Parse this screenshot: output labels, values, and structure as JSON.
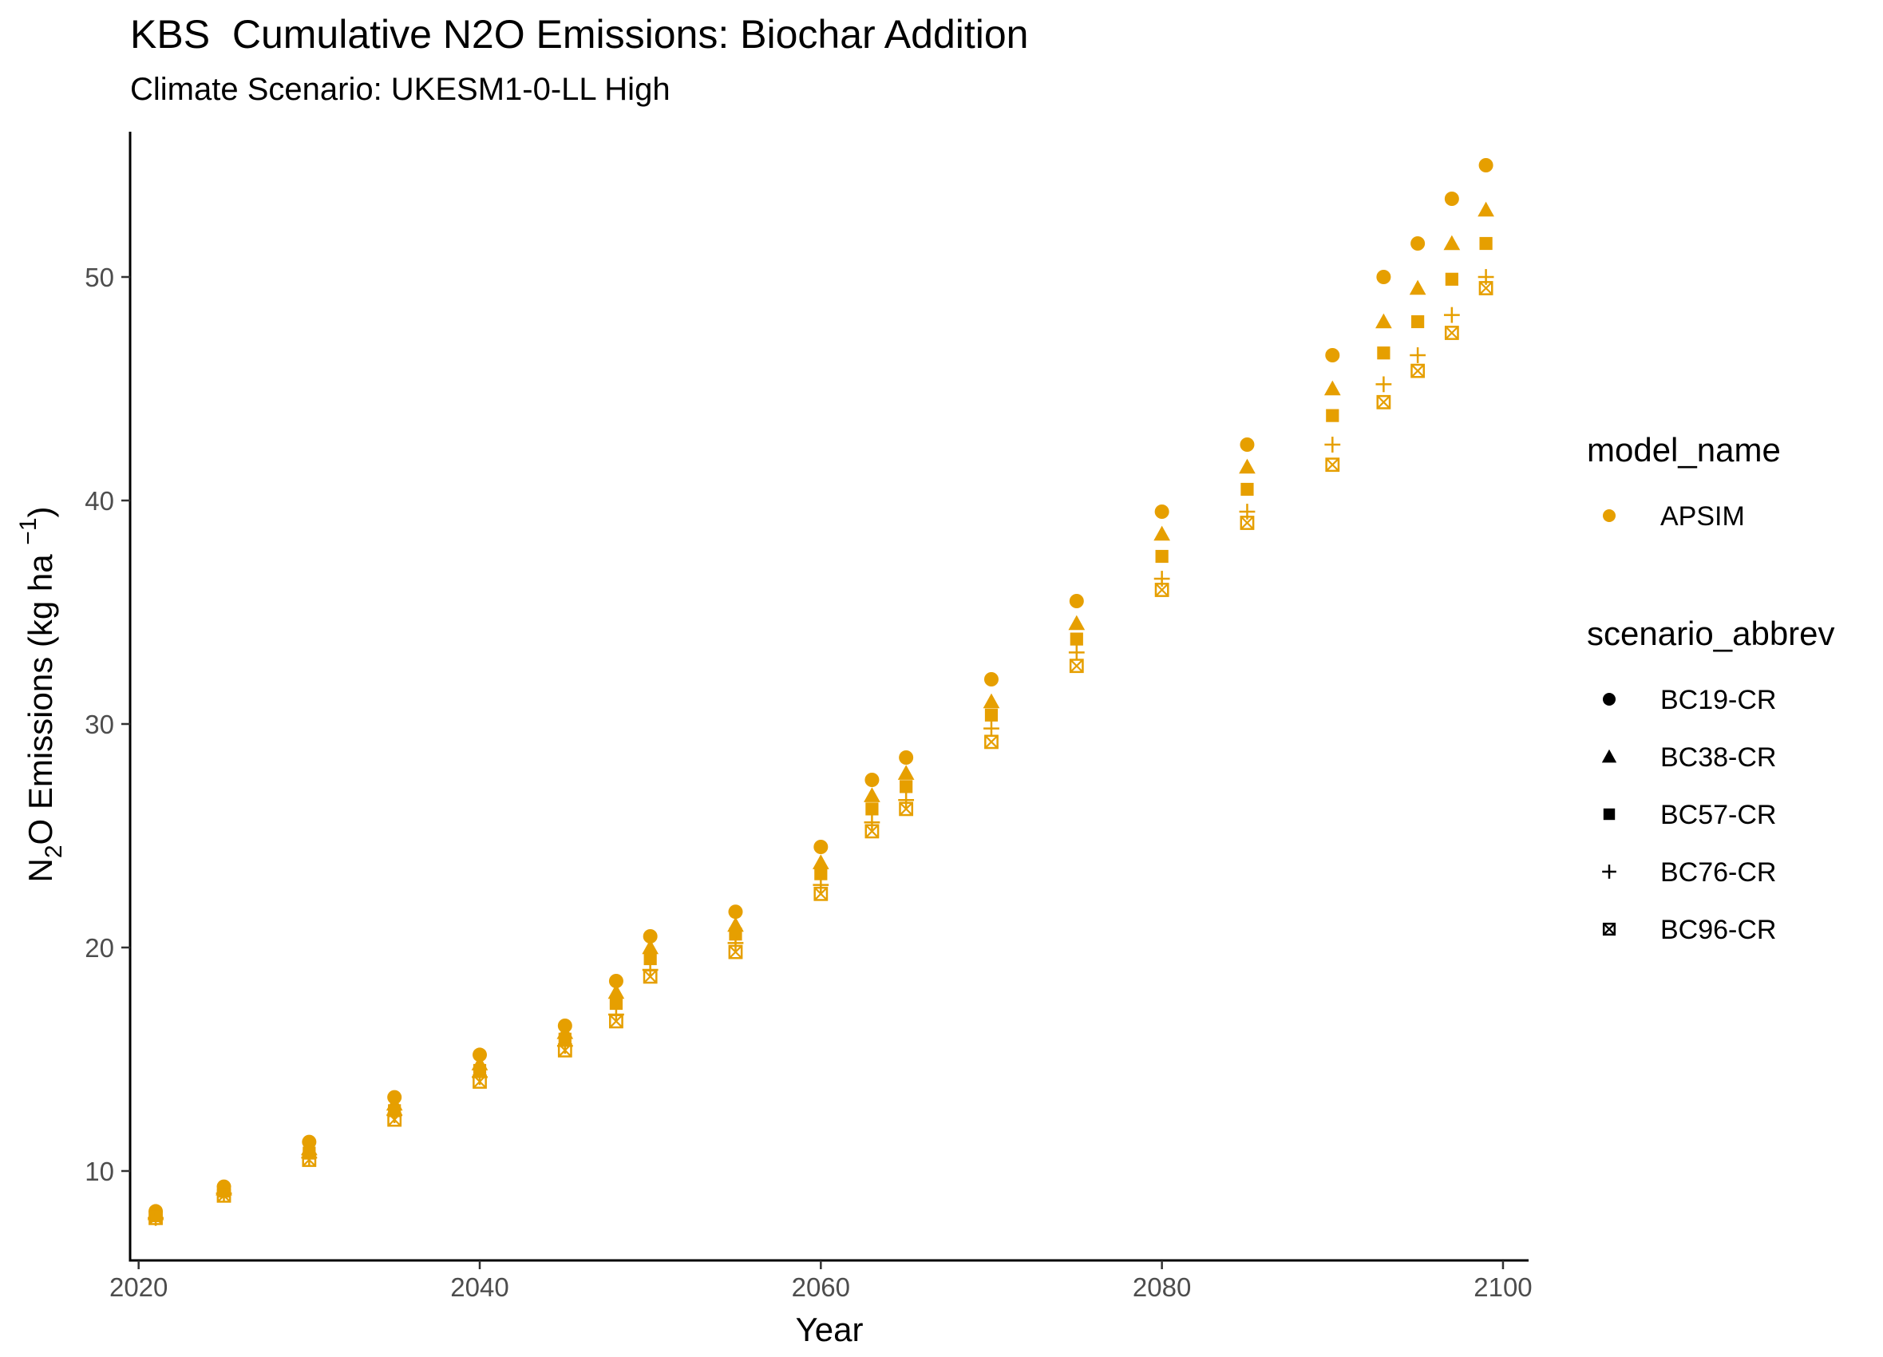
{
  "chart_data": {
    "type": "scatter",
    "title": "KBS  Cumulative N2O Emissions: Biochar Addition",
    "subtitle": "Climate Scenario: UKESM1-0-LL High",
    "xlabel": "Year",
    "ylabel": "N₂O Emissions (kg ha⁻¹)",
    "ylabel_parts": {
      "pre": "N",
      "sub": "2",
      "mid": "O Emissions (kg ha ",
      "sup": "−1",
      "post": ")"
    },
    "xlim": [
      2019.5,
      2101.5
    ],
    "ylim": [
      6.0,
      56.5
    ],
    "xticks": [
      2020,
      2040,
      2060,
      2080,
      2100
    ],
    "yticks": [
      10,
      20,
      30,
      40,
      50
    ],
    "grid": false,
    "legend_position": "right",
    "color": "#E69F00",
    "legends": [
      {
        "title": "model_name",
        "entries": [
          {
            "label": "APSIM",
            "shape": "circle",
            "color": "#E69F00"
          }
        ]
      },
      {
        "title": "scenario_abbrev",
        "entries": [
          {
            "label": "BC19-CR",
            "shape": "circle",
            "color": "#000000"
          },
          {
            "label": "BC38-CR",
            "shape": "triangle",
            "color": "#000000"
          },
          {
            "label": "BC57-CR",
            "shape": "square",
            "color": "#000000"
          },
          {
            "label": "BC76-CR",
            "shape": "plus",
            "color": "#000000"
          },
          {
            "label": "BC96-CR",
            "shape": "boxx",
            "color": "#000000"
          }
        ]
      }
    ],
    "x": [
      2021,
      2025,
      2030,
      2035,
      2040,
      2045,
      2048,
      2050,
      2055,
      2060,
      2063,
      2065,
      2070,
      2075,
      2080,
      2085,
      2090,
      2093,
      2095,
      2097,
      2099
    ],
    "series": [
      {
        "name": "BC19-CR",
        "model": "APSIM",
        "shape": "circle",
        "values": [
          8.2,
          9.3,
          11.3,
          13.3,
          15.2,
          16.5,
          18.5,
          20.5,
          21.6,
          24.5,
          27.5,
          28.5,
          32.0,
          35.5,
          39.5,
          42.5,
          46.5,
          50.0,
          51.5,
          53.5,
          55.0
        ]
      },
      {
        "name": "BC38-CR",
        "model": "APSIM",
        "shape": "triangle",
        "values": [
          8.1,
          9.2,
          11.0,
          13.0,
          14.8,
          16.2,
          18.0,
          20.0,
          21.0,
          23.8,
          26.8,
          27.8,
          31.0,
          34.5,
          38.5,
          41.5,
          45.0,
          48.0,
          49.5,
          51.5,
          53.0
        ]
      },
      {
        "name": "BC57-CR",
        "model": "APSIM",
        "shape": "square",
        "values": [
          8.0,
          9.1,
          10.8,
          12.7,
          14.5,
          15.9,
          17.5,
          19.5,
          20.6,
          23.3,
          26.2,
          27.2,
          30.4,
          33.8,
          37.5,
          40.5,
          43.8,
          46.6,
          48.0,
          49.9,
          51.5
        ]
      },
      {
        "name": "BC76-CR",
        "model": "APSIM",
        "shape": "plus",
        "values": [
          7.9,
          9.0,
          10.6,
          12.5,
          14.2,
          15.6,
          17.0,
          19.0,
          20.2,
          22.8,
          25.6,
          26.6,
          29.8,
          33.2,
          36.5,
          39.5,
          42.5,
          45.2,
          46.5,
          48.3,
          50.0
        ]
      },
      {
        "name": "BC96-CR",
        "model": "APSIM",
        "shape": "boxx",
        "values": [
          7.9,
          8.9,
          10.5,
          12.3,
          14.0,
          15.4,
          16.7,
          18.7,
          19.8,
          22.4,
          25.2,
          26.2,
          29.2,
          32.6,
          36.0,
          39.0,
          41.6,
          44.4,
          45.8,
          47.5,
          49.5
        ]
      }
    ]
  }
}
